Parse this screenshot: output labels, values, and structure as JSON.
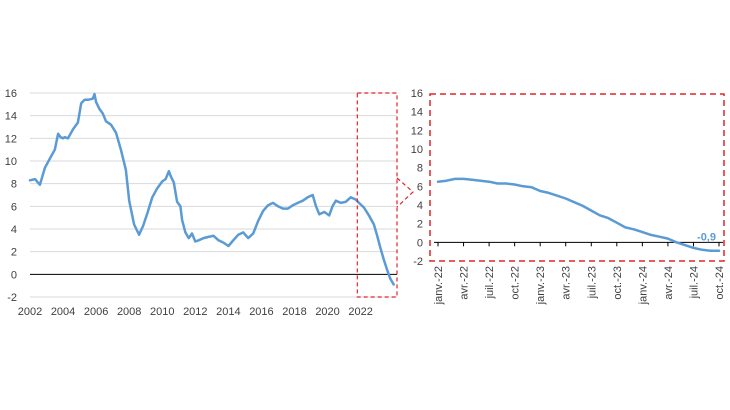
{
  "colors": {
    "series": "#5b9bd5",
    "highlight": "#e0262a",
    "grid": "#d9d9d9",
    "axis": "#000000",
    "label": "#404040"
  },
  "chart_data": [
    {
      "type": "line",
      "grid": true,
      "ylim": [
        -2,
        16
      ],
      "yticks": [
        -2,
        0,
        2,
        4,
        6,
        8,
        10,
        12,
        14,
        16
      ],
      "xlim": [
        2002,
        2024.2
      ],
      "xticks": [
        "2002",
        "2004",
        "2006",
        "2008",
        "2010",
        "2012",
        "2014",
        "2016",
        "2018",
        "2020",
        "2022"
      ],
      "highlight_range": [
        2021.8,
        2024.2
      ],
      "series": [
        {
          "x": [
            2002.0,
            2002.3,
            2002.6,
            2002.9,
            2003.2,
            2003.5,
            2003.7,
            2003.85,
            2004.0,
            2004.1,
            2004.3,
            2004.6,
            2004.9,
            2005.1,
            2005.3,
            2005.5,
            2005.8,
            2005.9,
            2006.0,
            2006.2,
            2006.4,
            2006.6,
            2006.9,
            2007.2,
            2007.5,
            2007.8,
            2008.0,
            2008.3,
            2008.6,
            2008.85,
            2009.1,
            2009.4,
            2009.7,
            2010.0,
            2010.2,
            2010.4,
            2010.5,
            2010.7,
            2010.9,
            2011.1,
            2011.2,
            2011.4,
            2011.6,
            2011.8,
            2012.0,
            2012.2,
            2012.5,
            2012.8,
            2013.1,
            2013.4,
            2013.7,
            2014.0,
            2014.3,
            2014.6,
            2014.9,
            2015.2,
            2015.5,
            2015.8,
            2016.1,
            2016.4,
            2016.7,
            2017.0,
            2017.3,
            2017.6,
            2017.9,
            2018.2,
            2018.5,
            2018.8,
            2019.1,
            2019.3,
            2019.5,
            2019.8,
            2020.1,
            2020.3,
            2020.5,
            2020.8,
            2021.1,
            2021.4,
            2021.7,
            2021.9,
            2022.2,
            2022.5,
            2022.8,
            2023.0,
            2023.2,
            2023.4,
            2023.6,
            2023.8,
            2024.0
          ],
          "values": [
            8.3,
            8.4,
            7.9,
            9.4,
            10.2,
            11.0,
            12.4,
            12.1,
            12.0,
            12.1,
            12.0,
            12.8,
            13.4,
            15.1,
            15.4,
            15.4,
            15.5,
            15.9,
            15.2,
            14.6,
            14.2,
            13.5,
            13.2,
            12.5,
            11.0,
            9.2,
            6.5,
            4.4,
            3.5,
            4.3,
            5.4,
            6.8,
            7.6,
            8.2,
            8.4,
            9.1,
            8.7,
            8.1,
            6.4,
            6.0,
            4.8,
            3.7,
            3.2,
            3.6,
            2.9,
            3.0,
            3.2,
            3.3,
            3.4,
            3.0,
            2.8,
            2.5,
            3.0,
            3.5,
            3.7,
            3.2,
            3.6,
            4.7,
            5.6,
            6.1,
            6.3,
            6.0,
            5.8,
            5.8,
            6.1,
            6.3,
            6.5,
            6.8,
            7.0,
            6.0,
            5.3,
            5.5,
            5.2,
            6.0,
            6.5,
            6.3,
            6.4,
            6.8,
            6.6,
            6.3,
            5.9,
            5.2,
            4.4,
            3.4,
            2.3,
            1.3,
            0.4,
            -0.4,
            -0.9
          ]
        }
      ]
    },
    {
      "type": "line",
      "grid": false,
      "ylim": [
        -2,
        16
      ],
      "yticks": [
        -2,
        0,
        2,
        4,
        6,
        8,
        10,
        12,
        14,
        16
      ],
      "categories": [
        "janv.-22",
        "avr.-22",
        "juil.-22",
        "oct.-22",
        "janv.-23",
        "avr.-23",
        "juil.-23",
        "oct.-23",
        "janv.-24",
        "avr.-24",
        "juil.-24",
        "oct.-24"
      ],
      "series": [
        {
          "x": [
            0,
            1,
            2,
            3,
            4,
            5,
            6,
            7,
            8,
            9,
            10,
            11,
            12,
            13,
            14,
            15,
            16,
            17,
            18,
            19,
            20,
            21,
            22,
            23,
            24,
            25,
            26,
            27,
            28,
            29,
            30,
            31,
            32,
            33
          ],
          "values": [
            6.5,
            6.6,
            6.8,
            6.8,
            6.7,
            6.6,
            6.5,
            6.3,
            6.3,
            6.2,
            6.0,
            5.9,
            5.5,
            5.3,
            5.0,
            4.7,
            4.3,
            3.9,
            3.4,
            2.9,
            2.6,
            2.1,
            1.6,
            1.4,
            1.1,
            0.8,
            0.6,
            0.4,
            0.0,
            -0.3,
            -0.6,
            -0.8,
            -0.9,
            -0.9
          ]
        }
      ],
      "annotation": "-0,9"
    }
  ]
}
